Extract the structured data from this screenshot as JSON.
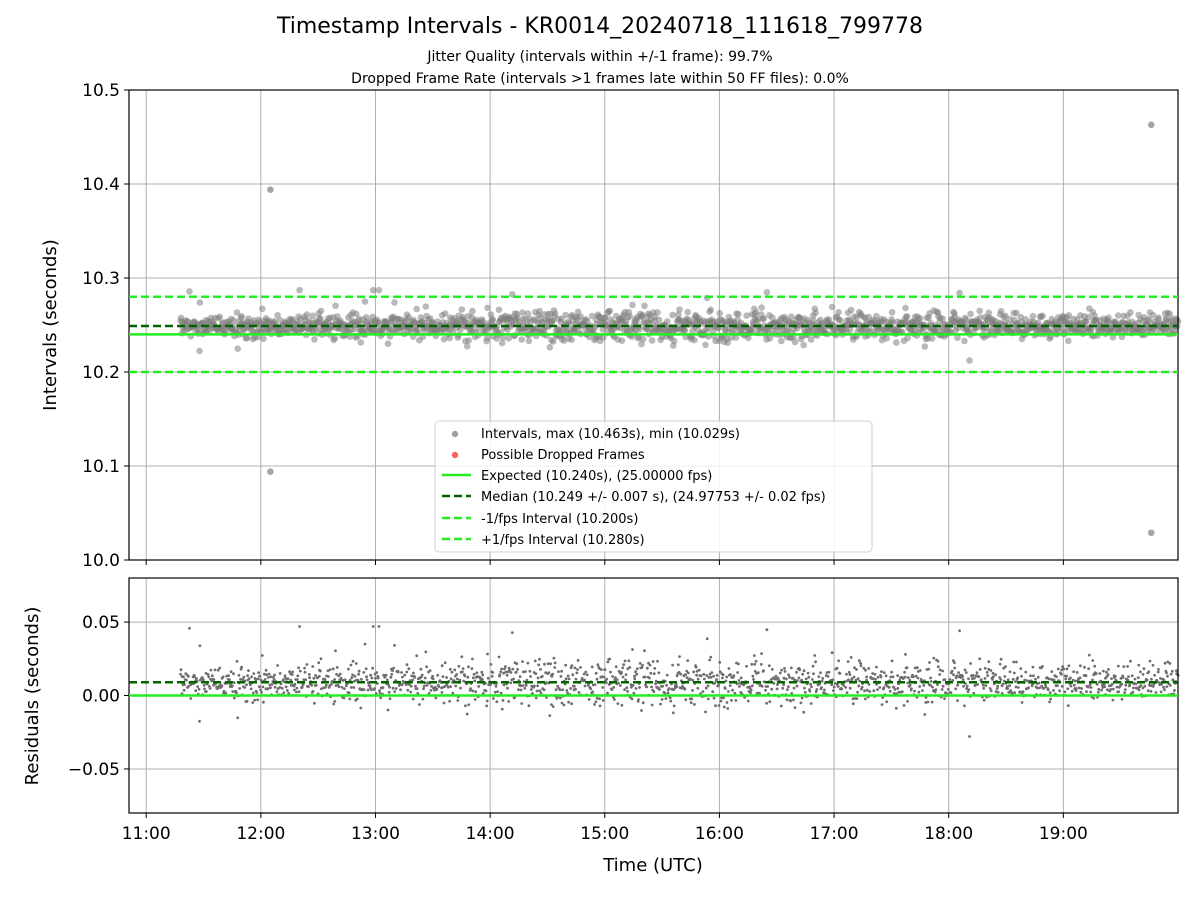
{
  "title": "Timestamp Intervals - KR0014_20240718_111618_799778",
  "subtitles": [
    "Jitter Quality (intervals within +/-1 frame): 99.7%",
    "Dropped Frame Rate (intervals >1 frames late within 50 FF files): 0.0%"
  ],
  "colors": {
    "points": "#808080",
    "dropped": "#ff4d4d",
    "expected": "#22ee22",
    "median": "#006400",
    "grid": "#b0b0b0"
  },
  "chart_data": [
    {
      "type": "scatter",
      "name": "intervals",
      "ylabel": "Intervals (seconds)",
      "ylim": [
        10.0,
        10.5
      ],
      "xlim_hours": [
        10.85,
        20.0
      ],
      "x_ticks": [
        "11:00",
        "12:00",
        "13:00",
        "14:00",
        "15:00",
        "16:00",
        "17:00",
        "18:00",
        "19:00"
      ],
      "y_ticks": [
        "10.0",
        "10.1",
        "10.2",
        "10.3",
        "10.4",
        "10.5"
      ],
      "grid": true,
      "legend_position": "lower center",
      "legend": [
        "Intervals, max (10.463s), min (10.029s)",
        "Possible Dropped Frames",
        "Expected (10.240s), (25.00000 fps)",
        "Median (10.249 +/- 0.007 s), (24.97753 +/- 0.02 fps)",
        "-1/fps Interval (10.200s)",
        "+1/fps Interval (10.280s)"
      ],
      "reference_lines": {
        "expected": 10.24,
        "median": 10.249,
        "minus_one_fps": 10.2,
        "plus_one_fps": 10.28
      },
      "data_range_hours": [
        11.3,
        20.0
      ],
      "median": 10.249,
      "spread": 0.007,
      "outliers": [
        {
          "x": "12:05",
          "y": 10.394
        },
        {
          "x": "12:05",
          "y": 10.094
        },
        {
          "x": "19:46",
          "y": 10.463
        },
        {
          "x": "19:46",
          "y": 10.029
        }
      ]
    },
    {
      "type": "scatter",
      "name": "residuals",
      "ylabel": "Residuals (seconds)",
      "xlabel": "Time (UTC)",
      "ylim": [
        -0.08,
        0.08
      ],
      "y_ticks": [
        "0.05",
        "0.00",
        "−0.05"
      ],
      "x_ticks": [
        "11:00",
        "12:00",
        "13:00",
        "14:00",
        "15:00",
        "16:00",
        "17:00",
        "18:00",
        "19:00"
      ],
      "grid": true,
      "reference_lines": {
        "zero": 0.0,
        "median_offset": 0.009
      }
    }
  ]
}
